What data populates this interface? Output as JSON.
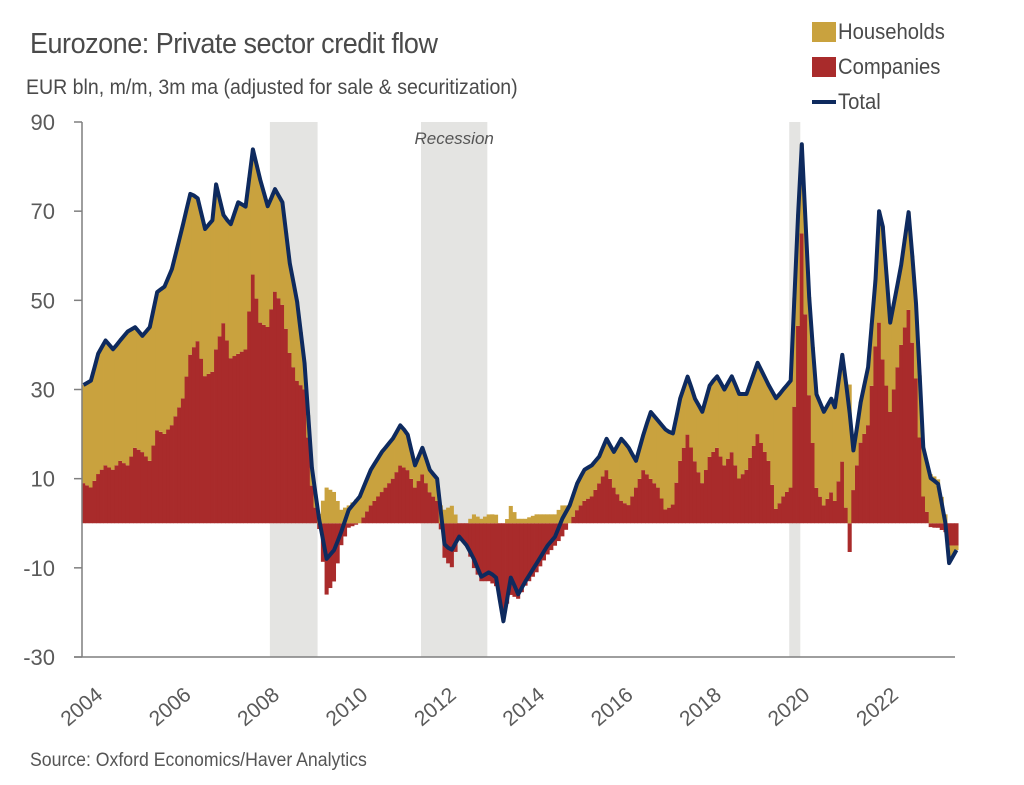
{
  "chart_data": {
    "type": "bar",
    "title": "Eurozone: Private sector credit flow",
    "subtitle": "EUR bln, m/m, 3m ma (adjusted for sale & securitization)",
    "xlabel": "",
    "ylabel": "",
    "ylim": [
      -30,
      90
    ],
    "yticks": [
      "90",
      "70",
      "50",
      "30",
      "10",
      "-10",
      "-30"
    ],
    "ytick_values": [
      90,
      70,
      50,
      30,
      10,
      -10,
      -30
    ],
    "xticks": [
      "2004",
      "2006",
      "2008",
      "2010",
      "2012",
      "2014",
      "2016",
      "2018",
      "2020",
      "2022"
    ],
    "xtick_values": [
      2004,
      2006,
      2008,
      2010,
      2012,
      2014,
      2016,
      2018,
      2020,
      2022
    ],
    "xlim": [
      2004.0,
      2023.75
    ],
    "grid": false,
    "legend_position": "top-right",
    "legend": [
      {
        "name": "Households",
        "color": "#C9A23E",
        "kind": "bar"
      },
      {
        "name": "Companies",
        "color": "#A92B2B",
        "kind": "bar"
      },
      {
        "name": "Total",
        "color": "#0E2A5E",
        "kind": "line"
      }
    ],
    "recessions": [
      {
        "start": 2008.25,
        "end": 2009.33,
        "label": ""
      },
      {
        "start": 2011.67,
        "end": 2013.17,
        "label": "Recession"
      },
      {
        "start": 2020.0,
        "end": 2020.25,
        "label": ""
      }
    ],
    "stacked": true,
    "series": [
      {
        "name": "Total",
        "kind": "line",
        "points": [
          [
            2004.0,
            31
          ],
          [
            2004.17,
            32
          ],
          [
            2004.33,
            38
          ],
          [
            2004.5,
            41
          ],
          [
            2004.67,
            39
          ],
          [
            2004.83,
            41
          ],
          [
            2005.0,
            43
          ],
          [
            2005.17,
            44
          ],
          [
            2005.33,
            42
          ],
          [
            2005.5,
            44
          ],
          [
            2005.67,
            52
          ],
          [
            2005.83,
            53
          ],
          [
            2006.0,
            57
          ],
          [
            2006.25,
            67
          ],
          [
            2006.42,
            74
          ],
          [
            2006.58,
            73
          ],
          [
            2006.75,
            66
          ],
          [
            2006.92,
            68
          ],
          [
            2007.0,
            76
          ],
          [
            2007.17,
            69
          ],
          [
            2007.33,
            67
          ],
          [
            2007.5,
            72
          ],
          [
            2007.67,
            71
          ],
          [
            2007.83,
            84
          ],
          [
            2008.0,
            77
          ],
          [
            2008.17,
            71
          ],
          [
            2008.33,
            75
          ],
          [
            2008.5,
            72
          ],
          [
            2008.67,
            58
          ],
          [
            2008.83,
            50
          ],
          [
            2009.0,
            36
          ],
          [
            2009.17,
            12
          ],
          [
            2009.33,
            1
          ],
          [
            2009.5,
            -8
          ],
          [
            2009.67,
            -6
          ],
          [
            2009.83,
            -2
          ],
          [
            2010.0,
            3
          ],
          [
            2010.25,
            6
          ],
          [
            2010.5,
            12
          ],
          [
            2010.75,
            16
          ],
          [
            2011.0,
            19
          ],
          [
            2011.17,
            22
          ],
          [
            2011.33,
            20
          ],
          [
            2011.5,
            13
          ],
          [
            2011.67,
            17
          ],
          [
            2011.83,
            12
          ],
          [
            2012.0,
            10
          ],
          [
            2012.17,
            -5
          ],
          [
            2012.33,
            -6
          ],
          [
            2012.5,
            -3
          ],
          [
            2012.67,
            -5
          ],
          [
            2012.83,
            -8
          ],
          [
            2013.0,
            -12
          ],
          [
            2013.17,
            -11
          ],
          [
            2013.33,
            -12
          ],
          [
            2013.5,
            -22
          ],
          [
            2013.67,
            -12
          ],
          [
            2013.83,
            -16
          ],
          [
            2014.0,
            -13
          ],
          [
            2014.25,
            -9
          ],
          [
            2014.5,
            -5
          ],
          [
            2014.67,
            -3
          ],
          [
            2014.83,
            1
          ],
          [
            2015.0,
            4
          ],
          [
            2015.17,
            9
          ],
          [
            2015.33,
            12
          ],
          [
            2015.5,
            13
          ],
          [
            2015.67,
            15
          ],
          [
            2015.83,
            19
          ],
          [
            2016.0,
            16
          ],
          [
            2016.17,
            19
          ],
          [
            2016.33,
            17
          ],
          [
            2016.5,
            14
          ],
          [
            2016.67,
            20
          ],
          [
            2016.83,
            25
          ],
          [
            2017.0,
            23
          ],
          [
            2017.17,
            21
          ],
          [
            2017.33,
            20
          ],
          [
            2017.5,
            28
          ],
          [
            2017.67,
            33
          ],
          [
            2017.83,
            28
          ],
          [
            2018.0,
            25
          ],
          [
            2018.17,
            31
          ],
          [
            2018.33,
            33
          ],
          [
            2018.5,
            30
          ],
          [
            2018.67,
            33
          ],
          [
            2018.83,
            29
          ],
          [
            2019.0,
            29
          ],
          [
            2019.25,
            36
          ],
          [
            2019.5,
            31
          ],
          [
            2019.67,
            28
          ],
          [
            2019.83,
            30
          ],
          [
            2020.0,
            32
          ],
          [
            2020.17,
            70
          ],
          [
            2020.25,
            85
          ],
          [
            2020.42,
            50
          ],
          [
            2020.58,
            29
          ],
          [
            2020.75,
            25
          ],
          [
            2020.92,
            28
          ],
          [
            2021.0,
            26
          ],
          [
            2021.17,
            38
          ],
          [
            2021.33,
            25
          ],
          [
            2021.42,
            16
          ],
          [
            2021.58,
            27
          ],
          [
            2021.75,
            35
          ],
          [
            2021.92,
            55
          ],
          [
            2022.0,
            70
          ],
          [
            2022.08,
            67
          ],
          [
            2022.25,
            45
          ],
          [
            2022.5,
            58
          ],
          [
            2022.67,
            70
          ],
          [
            2022.83,
            50
          ],
          [
            2023.0,
            17
          ],
          [
            2023.17,
            10
          ],
          [
            2023.33,
            9
          ],
          [
            2023.5,
            0
          ],
          [
            2023.58,
            -9
          ],
          [
            2023.75,
            -6
          ]
        ]
      },
      {
        "name": "Companies",
        "kind": "bar",
        "points": [
          [
            2004.0,
            9
          ],
          [
            2004.17,
            8
          ],
          [
            2004.33,
            11
          ],
          [
            2004.5,
            13
          ],
          [
            2004.67,
            12
          ],
          [
            2004.83,
            14
          ],
          [
            2005.0,
            13
          ],
          [
            2005.17,
            17
          ],
          [
            2005.33,
            16
          ],
          [
            2005.5,
            14
          ],
          [
            2005.67,
            21
          ],
          [
            2005.83,
            20
          ],
          [
            2006.0,
            22
          ],
          [
            2006.25,
            28
          ],
          [
            2006.42,
            38
          ],
          [
            2006.58,
            41
          ],
          [
            2006.75,
            33
          ],
          [
            2006.92,
            34
          ],
          [
            2007.0,
            39
          ],
          [
            2007.17,
            45
          ],
          [
            2007.33,
            37
          ],
          [
            2007.5,
            38
          ],
          [
            2007.67,
            39
          ],
          [
            2007.83,
            56
          ],
          [
            2008.0,
            45
          ],
          [
            2008.17,
            44
          ],
          [
            2008.33,
            52
          ],
          [
            2008.5,
            49
          ],
          [
            2008.67,
            38
          ],
          [
            2008.83,
            32
          ],
          [
            2009.0,
            30
          ],
          [
            2009.17,
            8
          ],
          [
            2009.33,
            -1
          ],
          [
            2009.5,
            -16
          ],
          [
            2009.67,
            -13
          ],
          [
            2009.83,
            -5
          ],
          [
            2010.0,
            -1
          ],
          [
            2010.25,
            0
          ],
          [
            2010.5,
            4
          ],
          [
            2010.75,
            7
          ],
          [
            2011.0,
            10
          ],
          [
            2011.17,
            13
          ],
          [
            2011.33,
            12
          ],
          [
            2011.5,
            8
          ],
          [
            2011.67,
            11
          ],
          [
            2011.83,
            7
          ],
          [
            2012.0,
            5
          ],
          [
            2012.17,
            -8
          ],
          [
            2012.33,
            -10
          ],
          [
            2012.5,
            -3
          ],
          [
            2012.67,
            -5
          ],
          [
            2012.83,
            -10
          ],
          [
            2013.0,
            -13
          ],
          [
            2013.17,
            -13
          ],
          [
            2013.33,
            -14
          ],
          [
            2013.5,
            -20
          ],
          [
            2013.67,
            -16
          ],
          [
            2013.83,
            -17
          ],
          [
            2014.0,
            -14
          ],
          [
            2014.25,
            -11
          ],
          [
            2014.5,
            -7
          ],
          [
            2014.67,
            -5
          ],
          [
            2014.83,
            -3
          ],
          [
            2015.0,
            0
          ],
          [
            2015.17,
            3
          ],
          [
            2015.33,
            5
          ],
          [
            2015.5,
            6
          ],
          [
            2015.67,
            9
          ],
          [
            2015.83,
            12
          ],
          [
            2016.0,
            8
          ],
          [
            2016.17,
            5
          ],
          [
            2016.33,
            4
          ],
          [
            2016.5,
            8
          ],
          [
            2016.67,
            12
          ],
          [
            2016.83,
            10
          ],
          [
            2017.0,
            8
          ],
          [
            2017.17,
            3
          ],
          [
            2017.33,
            4
          ],
          [
            2017.5,
            14
          ],
          [
            2017.67,
            20
          ],
          [
            2017.83,
            14
          ],
          [
            2018.0,
            9
          ],
          [
            2018.17,
            15
          ],
          [
            2018.33,
            17
          ],
          [
            2018.5,
            13
          ],
          [
            2018.67,
            16
          ],
          [
            2018.83,
            10
          ],
          [
            2019.0,
            12
          ],
          [
            2019.25,
            20
          ],
          [
            2019.5,
            14
          ],
          [
            2019.67,
            3
          ],
          [
            2019.83,
            6
          ],
          [
            2020.0,
            8
          ],
          [
            2020.17,
            45
          ],
          [
            2020.25,
            65
          ],
          [
            2020.42,
            28
          ],
          [
            2020.58,
            8
          ],
          [
            2020.75,
            4
          ],
          [
            2020.92,
            7
          ],
          [
            2021.0,
            5
          ],
          [
            2021.17,
            14
          ],
          [
            2021.33,
            -7
          ],
          [
            2021.42,
            8
          ],
          [
            2021.58,
            18
          ],
          [
            2021.75,
            22
          ],
          [
            2021.92,
            40
          ],
          [
            2022.0,
            45
          ],
          [
            2022.08,
            37
          ],
          [
            2022.25,
            25
          ],
          [
            2022.5,
            40
          ],
          [
            2022.67,
            48
          ],
          [
            2022.83,
            33
          ],
          [
            2023.0,
            6
          ],
          [
            2023.17,
            -1
          ],
          [
            2023.33,
            -1
          ],
          [
            2023.5,
            -2
          ],
          [
            2023.58,
            -5
          ],
          [
            2023.75,
            -5
          ]
        ]
      },
      {
        "name": "Households",
        "kind": "bar",
        "derived": "Total minus Companies"
      }
    ]
  },
  "source": "Source: Oxford Economics/Haver Analytics"
}
